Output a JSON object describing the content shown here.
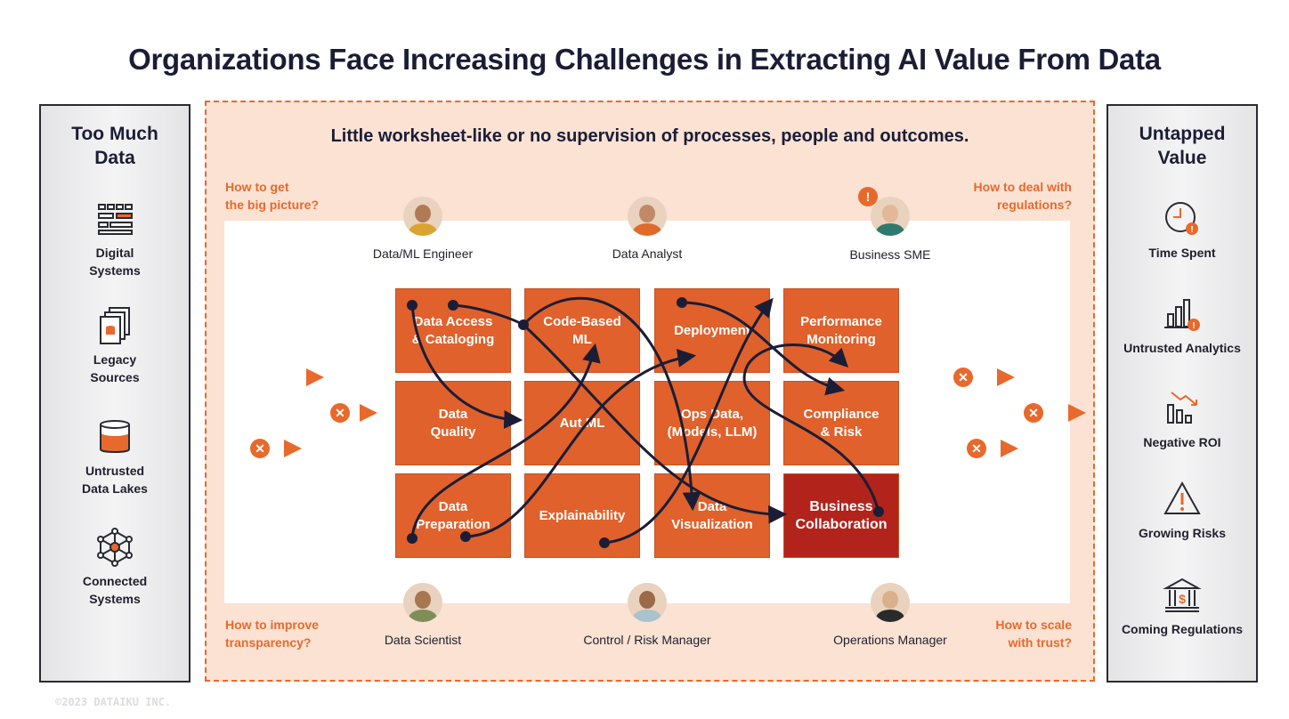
{
  "title": "Organizations Face Increasing Challenges in Extracting AI Value From Data",
  "left_panel": {
    "title_line1": "Too Much",
    "title_line2": "Data",
    "items": [
      {
        "line1": "Digital",
        "line2": "Systems",
        "icon": "server-grid-icon"
      },
      {
        "line1": "Legacy",
        "line2": "Sources",
        "icon": "stacked-documents-icon"
      },
      {
        "line1": "Untrusted",
        "line2": "Data Lakes",
        "icon": "database-cylinder-icon"
      },
      {
        "line1": "Connected",
        "line2": "Systems",
        "icon": "network-nodes-icon"
      }
    ]
  },
  "right_panel": {
    "title_line1": "Untapped",
    "title_line2": "Value",
    "items": [
      {
        "label": "Time Spent",
        "icon": "clock-warning-icon"
      },
      {
        "label": "Untrusted Analytics",
        "icon": "bar-chart-warning-icon"
      },
      {
        "label": "Negative ROI",
        "icon": "declining-chart-icon"
      },
      {
        "label": "Growing Risks",
        "icon": "warning-triangle-icon"
      },
      {
        "label": "Coming Regulations",
        "icon": "bank-building-icon"
      }
    ]
  },
  "center": {
    "subtitle": "Little worksheet-like or no supervision of processes, people and outcomes.",
    "questions": {
      "top_left_1": "How to get",
      "top_left_2": "the big picture?",
      "top_right_1": "How to deal with",
      "top_right_2": "regulations?",
      "bottom_left_1": "How to improve",
      "bottom_left_2": "transparency?",
      "bottom_right_1": "How to scale",
      "bottom_right_2": "with trust?"
    },
    "roles_top": [
      "Data/ML Engineer",
      "Data Analyst",
      "Business SME"
    ],
    "roles_bottom": [
      "Data Scientist",
      "Control / Risk Manager",
      "Operations Manager"
    ],
    "alert_symbol": "!",
    "x_symbol": "✕",
    "tiles": [
      "Data Access\n& Cataloging",
      "Code-Based\nML",
      "Deployment",
      "Performance\nMonitoring",
      "Data\nQuality",
      "Aut ML",
      "Ops Data,\n(Models, LLM)",
      "Compliance\n& Risk",
      "Data\nPreparation",
      "Explainability",
      "Data\nVisualization",
      "Business\nCollaboration"
    ]
  },
  "colors": {
    "accent": "#e8692c",
    "tile": "#e0612b",
    "highlight": "#b1231b",
    "navy": "#1b1d36"
  },
  "copyright": "©2023 DATAIKU INC."
}
